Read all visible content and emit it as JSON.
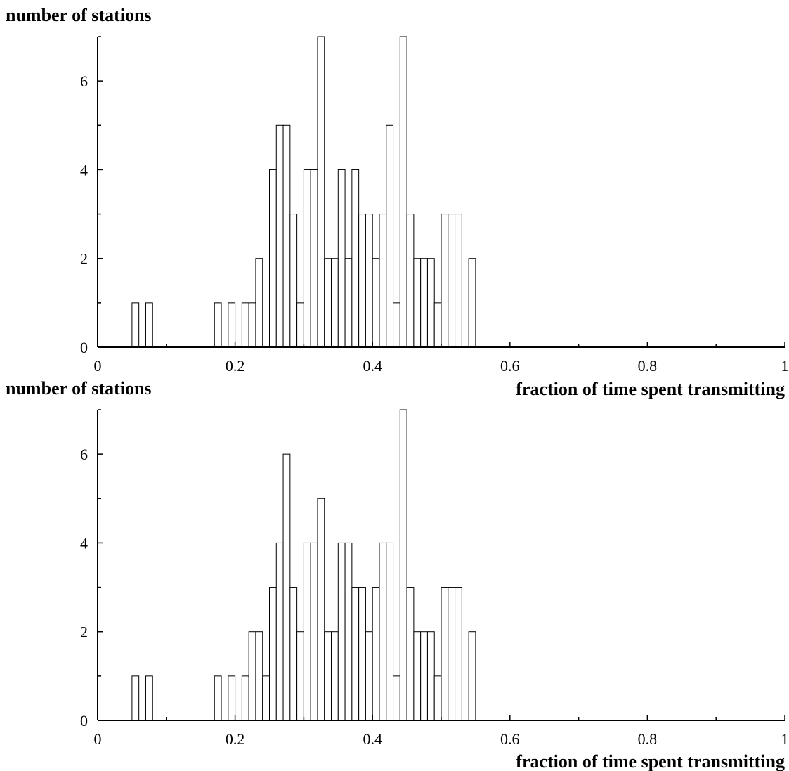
{
  "chart_data": [
    {
      "type": "bar",
      "ylabel": "number of stations",
      "xlabel": "fraction of time spent transmitting",
      "xlim": [
        0,
        1
      ],
      "ylim": [
        0,
        7
      ],
      "xticks": [
        "0",
        "0.2",
        "0.4",
        "0.6",
        "0.8",
        "1"
      ],
      "yticks": [
        "0",
        "2",
        "4",
        "6"
      ],
      "bin_width": 0.01,
      "grid": false,
      "bars": [
        {
          "x": 0.05,
          "value": 1
        },
        {
          "x": 0.07,
          "value": 1
        },
        {
          "x": 0.17,
          "value": 1
        },
        {
          "x": 0.19,
          "value": 1
        },
        {
          "x": 0.21,
          "value": 1
        },
        {
          "x": 0.22,
          "value": 1
        },
        {
          "x": 0.23,
          "value": 2
        },
        {
          "x": 0.25,
          "value": 4
        },
        {
          "x": 0.26,
          "value": 5
        },
        {
          "x": 0.27,
          "value": 5
        },
        {
          "x": 0.28,
          "value": 3
        },
        {
          "x": 0.29,
          "value": 1
        },
        {
          "x": 0.3,
          "value": 4
        },
        {
          "x": 0.31,
          "value": 4
        },
        {
          "x": 0.32,
          "value": 7
        },
        {
          "x": 0.33,
          "value": 2
        },
        {
          "x": 0.34,
          "value": 2
        },
        {
          "x": 0.35,
          "value": 4
        },
        {
          "x": 0.36,
          "value": 2
        },
        {
          "x": 0.37,
          "value": 4
        },
        {
          "x": 0.38,
          "value": 3
        },
        {
          "x": 0.39,
          "value": 3
        },
        {
          "x": 0.4,
          "value": 2
        },
        {
          "x": 0.41,
          "value": 3
        },
        {
          "x": 0.42,
          "value": 5
        },
        {
          "x": 0.43,
          "value": 1
        },
        {
          "x": 0.44,
          "value": 7
        },
        {
          "x": 0.45,
          "value": 3
        },
        {
          "x": 0.46,
          "value": 2
        },
        {
          "x": 0.47,
          "value": 2
        },
        {
          "x": 0.48,
          "value": 2
        },
        {
          "x": 0.49,
          "value": 1
        },
        {
          "x": 0.5,
          "value": 3
        },
        {
          "x": 0.51,
          "value": 3
        },
        {
          "x": 0.52,
          "value": 3
        },
        {
          "x": 0.54,
          "value": 2
        }
      ]
    },
    {
      "type": "bar",
      "ylabel": "number of stations",
      "xlabel": "fraction of time spent transmitting",
      "xlim": [
        0,
        1
      ],
      "ylim": [
        0,
        7
      ],
      "xticks": [
        "0",
        "0.2",
        "0.4",
        "0.6",
        "0.8",
        "1"
      ],
      "yticks": [
        "0",
        "2",
        "4",
        "6"
      ],
      "bin_width": 0.01,
      "grid": false,
      "bars": [
        {
          "x": 0.05,
          "value": 1
        },
        {
          "x": 0.07,
          "value": 1
        },
        {
          "x": 0.17,
          "value": 1
        },
        {
          "x": 0.19,
          "value": 1
        },
        {
          "x": 0.21,
          "value": 1
        },
        {
          "x": 0.22,
          "value": 2
        },
        {
          "x": 0.23,
          "value": 2
        },
        {
          "x": 0.24,
          "value": 1
        },
        {
          "x": 0.25,
          "value": 3
        },
        {
          "x": 0.26,
          "value": 4
        },
        {
          "x": 0.27,
          "value": 6
        },
        {
          "x": 0.28,
          "value": 3
        },
        {
          "x": 0.29,
          "value": 2
        },
        {
          "x": 0.3,
          "value": 4
        },
        {
          "x": 0.31,
          "value": 4
        },
        {
          "x": 0.32,
          "value": 5
        },
        {
          "x": 0.33,
          "value": 2
        },
        {
          "x": 0.34,
          "value": 2
        },
        {
          "x": 0.35,
          "value": 4
        },
        {
          "x": 0.36,
          "value": 4
        },
        {
          "x": 0.37,
          "value": 3
        },
        {
          "x": 0.38,
          "value": 3
        },
        {
          "x": 0.39,
          "value": 2
        },
        {
          "x": 0.4,
          "value": 3
        },
        {
          "x": 0.41,
          "value": 4
        },
        {
          "x": 0.42,
          "value": 4
        },
        {
          "x": 0.43,
          "value": 1
        },
        {
          "x": 0.44,
          "value": 7
        },
        {
          "x": 0.45,
          "value": 3
        },
        {
          "x": 0.46,
          "value": 2
        },
        {
          "x": 0.47,
          "value": 2
        },
        {
          "x": 0.48,
          "value": 2
        },
        {
          "x": 0.49,
          "value": 1
        },
        {
          "x": 0.5,
          "value": 3
        },
        {
          "x": 0.51,
          "value": 3
        },
        {
          "x": 0.52,
          "value": 3
        },
        {
          "x": 0.54,
          "value": 2
        }
      ]
    }
  ]
}
